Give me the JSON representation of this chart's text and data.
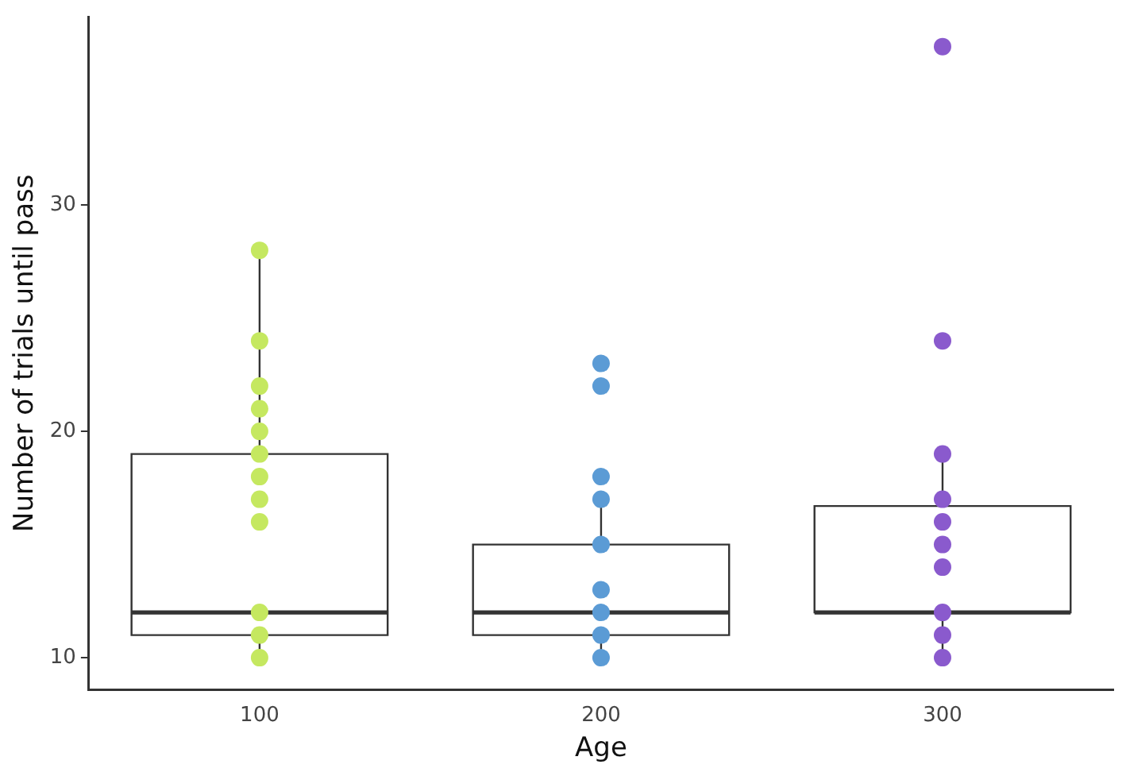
{
  "chart_data": {
    "type": "box",
    "xlabel": "Age",
    "ylabel": "Number of trials until pass",
    "categories": [
      "100",
      "200",
      "300"
    ],
    "boxes": [
      {
        "low": 10,
        "q1": 11,
        "median": 12,
        "q3": 19,
        "high": 28
      },
      {
        "low": 10,
        "q1": 11,
        "median": 12,
        "q3": 15,
        "high": 17
      },
      {
        "low": 10,
        "q1": 12,
        "median": 12,
        "q3": 16.7,
        "high": 19
      }
    ],
    "series": [
      {
        "type": "scatter",
        "color": "#c5e860",
        "x": [
          "100",
          "100",
          "100",
          "100",
          "100",
          "100",
          "100",
          "100",
          "100",
          "100",
          "100",
          "100"
        ],
        "values": [
          28,
          24,
          22,
          21,
          20,
          19,
          18,
          17,
          16,
          12,
          11,
          10
        ]
      },
      {
        "type": "scatter",
        "color": "#5b9bd5",
        "x": [
          "200",
          "200",
          "200",
          "200",
          "200",
          "200",
          "200",
          "200",
          "200"
        ],
        "values": [
          23,
          22,
          18,
          17,
          15,
          13,
          12,
          11,
          10
        ]
      },
      {
        "type": "scatter",
        "color": "#8a5acd",
        "x": [
          "300",
          "300",
          "300",
          "300",
          "300",
          "300",
          "300",
          "300",
          "300",
          "300"
        ],
        "values": [
          37,
          24,
          19,
          17,
          16,
          15,
          14,
          12,
          11,
          10
        ]
      }
    ],
    "ylim": [
      8.6,
      38.3
    ],
    "yticks": [
      10,
      20,
      30
    ],
    "grid": false,
    "legend": false,
    "marker": "circle"
  }
}
